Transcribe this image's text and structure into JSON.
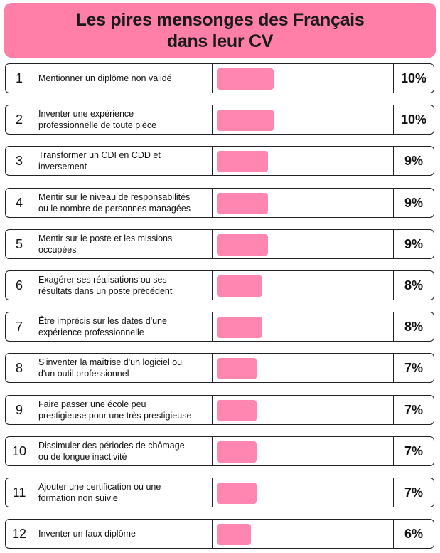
{
  "title_lines": [
    "Les pires mensonges des Français",
    "dans leur CV"
  ],
  "colors": {
    "header": "#ff7fa9",
    "bar": "#ff86b1",
    "border": "#222222"
  },
  "chart_data": {
    "type": "bar",
    "orientation": "horizontal",
    "title": "Les pires mensonges des Français dans leur CV",
    "categories": [
      "Mentionner un diplôme non validé",
      "Inventer une expérience professionnelle de toute pièce",
      "Transformer un CDI en CDD et inversement",
      "Mentir sur le niveau de responsabilités ou le nombre de personnes managées",
      "Mentir sur le poste et les missions occupées",
      "Exagérer ses réalisations ou ses résultats dans un poste précédent",
      "Être imprécis sur les dates d'une expérience professionnelle",
      "S'inventer la maîtrise d'un logiciel ou d'un outil professionnel",
      "Faire passer une école peu prestigieuse pour une très prestigieuse",
      "Dissimuler des périodes de chômage ou de longue inactivité",
      "Ajouter une certification ou une formation non suivie",
      "Inventer un faux diplôme"
    ],
    "values": [
      10,
      10,
      9,
      9,
      9,
      8,
      8,
      7,
      7,
      7,
      7,
      6
    ],
    "unit": "%",
    "xlim": [
      0,
      10
    ]
  },
  "rows": [
    {
      "rank": "1",
      "lines": [
        "Mentionner un diplôme non validé"
      ],
      "pct_label": "10%"
    },
    {
      "rank": "2",
      "lines": [
        "Inventer une expérience",
        "professionnelle de toute pièce"
      ],
      "pct_label": "10%"
    },
    {
      "rank": "3",
      "lines": [
        "Transformer un CDI en CDD et",
        "inversement"
      ],
      "pct_label": "9%"
    },
    {
      "rank": "4",
      "lines": [
        "Mentir sur le niveau de responsabilités",
        "ou le nombre de personnes managées"
      ],
      "pct_label": "9%"
    },
    {
      "rank": "5",
      "lines": [
        "Mentir sur le poste et les missions",
        "occupées"
      ],
      "pct_label": "9%"
    },
    {
      "rank": "6",
      "lines": [
        "Exagérer ses réalisations ou ses",
        "résultats dans un poste précédent"
      ],
      "pct_label": "8%"
    },
    {
      "rank": "7",
      "lines": [
        "Être imprécis sur les dates d'une",
        "expérience professionnelle"
      ],
      "pct_label": "8%"
    },
    {
      "rank": "8",
      "lines": [
        "S'inventer la maîtrise d'un logiciel ou",
        "d'un outil professionnel"
      ],
      "pct_label": "7%"
    },
    {
      "rank": "9",
      "lines": [
        "Faire passer une école peu",
        "prestigieuse pour une très prestigieuse"
      ],
      "pct_label": "7%"
    },
    {
      "rank": "10",
      "lines": [
        "Dissimuler des périodes de chômage",
        "ou de longue inactivité"
      ],
      "pct_label": "7%"
    },
    {
      "rank": "11",
      "lines": [
        "Ajouter une certification ou une",
        "formation non suivie"
      ],
      "pct_label": "7%"
    },
    {
      "rank": "12",
      "lines": [
        "Inventer un faux diplôme"
      ],
      "pct_label": "6%"
    }
  ]
}
